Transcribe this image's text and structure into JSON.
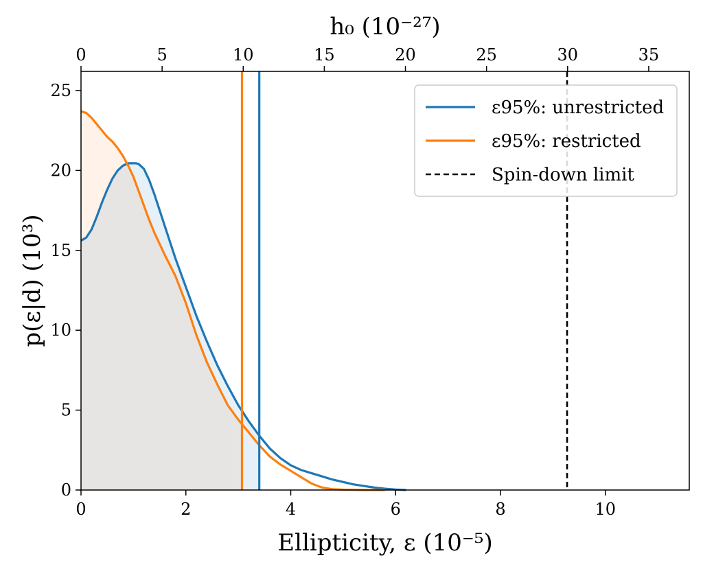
{
  "chart_data": {
    "type": "line",
    "xlabel_bottom": "Ellipticity, ε (10⁻⁵)",
    "xlabel_top": "h₀ (10⁻²⁷)",
    "ylabel": "p(ε|d) (10³)",
    "xlim": [
      0,
      11.6
    ],
    "ylim": [
      0,
      26.2
    ],
    "top_xlim": [
      0,
      37.5
    ],
    "x_ticks": [
      0,
      2,
      4,
      6,
      8,
      10
    ],
    "x_tick_labels": [
      "0",
      "2",
      "4",
      "6",
      "8",
      "10"
    ],
    "top_ticks": [
      0,
      5,
      10,
      15,
      20,
      25,
      30,
      35
    ],
    "top_tick_labels": [
      "0",
      "5",
      "10",
      "15",
      "20",
      "25",
      "30",
      "35"
    ],
    "y_ticks": [
      0,
      5,
      10,
      15,
      20,
      25
    ],
    "y_tick_labels": [
      "0",
      "5",
      "10",
      "15",
      "20",
      "25"
    ],
    "grid": false,
    "legend_position": "top-right",
    "series": [
      {
        "name": "ε95%: unrestricted",
        "color": "#1f77b4",
        "x": [
          0,
          0.1,
          0.2,
          0.3,
          0.4,
          0.5,
          0.6,
          0.7,
          0.8,
          0.9,
          1.0,
          1.05,
          1.1,
          1.2,
          1.3,
          1.4,
          1.5,
          1.6,
          1.8,
          2.0,
          2.2,
          2.4,
          2.6,
          2.8,
          3.0,
          3.2,
          3.4,
          3.6,
          3.8,
          4.0,
          4.2,
          4.4,
          4.6,
          4.8,
          5.0,
          5.2,
          5.4,
          5.6,
          5.8,
          6.0,
          6.2
        ],
        "y": [
          15.6,
          15.8,
          16.3,
          17.1,
          18.0,
          18.8,
          19.5,
          20.0,
          20.3,
          20.45,
          20.45,
          20.45,
          20.4,
          20.1,
          19.4,
          18.5,
          17.5,
          16.5,
          14.5,
          12.7,
          10.9,
          9.3,
          7.8,
          6.5,
          5.3,
          4.3,
          3.4,
          2.6,
          2.0,
          1.55,
          1.25,
          1.05,
          0.85,
          0.65,
          0.5,
          0.35,
          0.25,
          0.15,
          0.08,
          0.03,
          0.0
        ],
        "fill_to_x": 3.4
      },
      {
        "name": "ε95%: restricted",
        "color": "#ff7f0e",
        "x": [
          0,
          0.1,
          0.2,
          0.3,
          0.4,
          0.5,
          0.6,
          0.7,
          0.8,
          0.9,
          1.0,
          1.1,
          1.2,
          1.3,
          1.4,
          1.6,
          1.8,
          2.0,
          2.2,
          2.4,
          2.6,
          2.8,
          3.0,
          3.2,
          3.4,
          3.6,
          3.8,
          4.0,
          4.2,
          4.4,
          4.6,
          4.8,
          5.0,
          5.2,
          5.4,
          5.6,
          5.8
        ],
        "y": [
          23.7,
          23.6,
          23.3,
          22.9,
          22.5,
          22.1,
          21.8,
          21.4,
          20.9,
          20.3,
          19.6,
          18.7,
          17.8,
          16.9,
          16.1,
          14.7,
          13.4,
          11.7,
          9.7,
          8.0,
          6.6,
          5.3,
          4.4,
          3.6,
          2.8,
          2.1,
          1.6,
          1.2,
          0.8,
          0.4,
          0.15,
          0.05,
          0.02,
          0.01,
          0.0,
          0.0,
          0.0
        ],
        "fill_to_x": 3.07
      }
    ],
    "vertical_lines": [
      {
        "name": "ε95%: unrestricted",
        "x": 3.4,
        "color": "#1f77b4",
        "style": "solid"
      },
      {
        "name": "ε95%: restricted",
        "x": 3.07,
        "color": "#ff7f0e",
        "style": "solid"
      },
      {
        "name": "Spin-down limit",
        "x": 9.27,
        "color": "#000000",
        "style": "dashed"
      }
    ],
    "legend": [
      {
        "label": "ε95%: unrestricted",
        "color": "#1f77b4",
        "style": "solid"
      },
      {
        "label": "ε95%: restricted",
        "color": "#ff7f0e",
        "style": "solid"
      },
      {
        "label": "Spin-down limit",
        "color": "#000000",
        "style": "dashed"
      }
    ]
  }
}
